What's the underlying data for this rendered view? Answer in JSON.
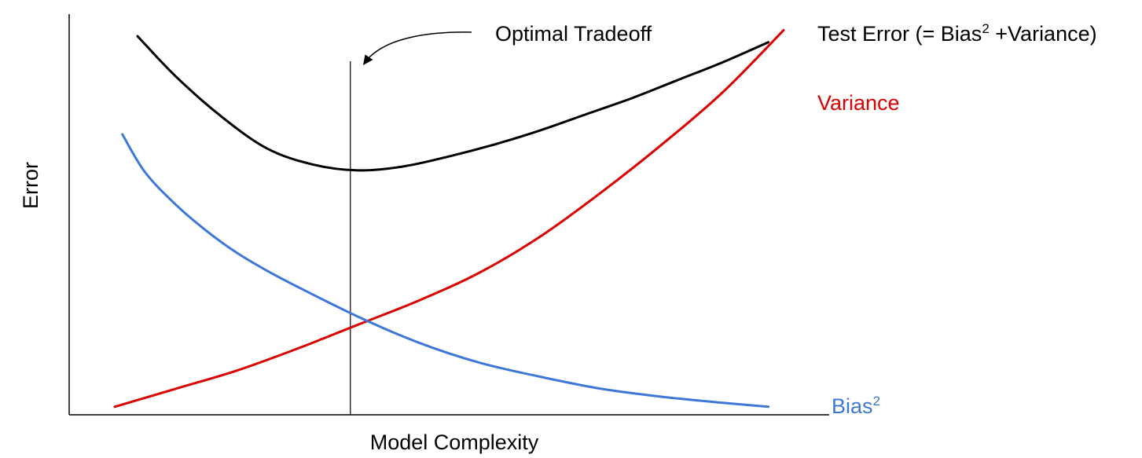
{
  "chart_data": {
    "type": "line",
    "title": "",
    "xlabel": "Model Complexity",
    "ylabel": "Error",
    "xlim": [
      0,
      100
    ],
    "ylim": [
      0,
      100
    ],
    "grid": false,
    "ticks": false,
    "series": [
      {
        "name": "Test Error (= Bias",
        "name_sup": "2",
        "name_suffix": " +Variance)",
        "color": "#000000",
        "x": [
          9,
          14,
          20,
          26,
          32,
          38,
          44,
          50,
          56,
          62,
          68,
          74,
          80,
          86,
          92
        ],
        "y": [
          94.5,
          84.5,
          74.5,
          66.5,
          62.5,
          61,
          62,
          64.5,
          67.5,
          71,
          75,
          79,
          83.5,
          88,
          93
        ]
      },
      {
        "name": "Variance",
        "color": "#dd0000",
        "x": [
          6,
          14,
          22,
          30,
          38,
          46,
          54,
          62,
          70,
          78,
          86,
          94
        ],
        "y": [
          2,
          6.5,
          11,
          16.5,
          22.5,
          28.5,
          35.5,
          44.5,
          55.5,
          67.5,
          80.5,
          96
        ]
      },
      {
        "name": "Bias",
        "name_sup": "2",
        "color": "#3d78d8",
        "x": [
          7,
          10,
          14,
          18,
          22,
          26,
          30,
          38,
          46,
          54,
          62,
          70,
          78,
          86,
          92
        ],
        "y": [
          70,
          60.5,
          52.5,
          46,
          40.5,
          36,
          32,
          24.5,
          18,
          13,
          9.5,
          6.5,
          4.5,
          3,
          2
        ]
      }
    ],
    "annotations": [
      {
        "text": "Optimal Tradeoff",
        "x": 37
      }
    ]
  }
}
